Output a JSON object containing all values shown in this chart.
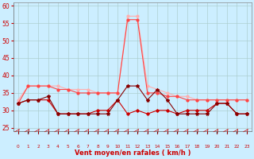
{
  "x": [
    0,
    1,
    2,
    3,
    4,
    5,
    6,
    7,
    8,
    9,
    10,
    11,
    12,
    13,
    14,
    15,
    16,
    17,
    18,
    19,
    20,
    21,
    22,
    23
  ],
  "series_rafales_color": "#FFB0B0",
  "series_moyen_color": "#FF4444",
  "series_dark1_color": "#CC0000",
  "series_dark2_color": "#880000",
  "series_rafales": [
    33,
    37,
    37,
    37,
    37,
    36,
    36,
    36,
    35,
    35,
    35,
    57,
    57,
    37,
    36,
    35,
    34,
    34,
    33,
    33,
    33,
    33,
    33,
    33
  ],
  "series_moyen": [
    32,
    37,
    37,
    37,
    36,
    36,
    35,
    35,
    35,
    35,
    35,
    56,
    56,
    35,
    35,
    34,
    34,
    33,
    33,
    33,
    33,
    33,
    33,
    33
  ],
  "series_dark1": [
    32,
    33,
    33,
    33,
    29,
    29,
    29,
    29,
    30,
    30,
    33,
    29,
    30,
    29,
    30,
    30,
    29,
    30,
    30,
    30,
    32,
    32,
    29,
    29
  ],
  "series_dark2": [
    32,
    33,
    33,
    34,
    29,
    29,
    29,
    29,
    29,
    29,
    33,
    37,
    37,
    33,
    36,
    33,
    29,
    29,
    29,
    29,
    32,
    32,
    29,
    29
  ],
  "xlabel": "Vent moyen/en rafales ( km/h )",
  "ylim_min": 24,
  "ylim_max": 61,
  "yticks": [
    25,
    30,
    35,
    40,
    45,
    50,
    55,
    60
  ],
  "background_color": "#cceeff",
  "grid_color": "#aacccc"
}
